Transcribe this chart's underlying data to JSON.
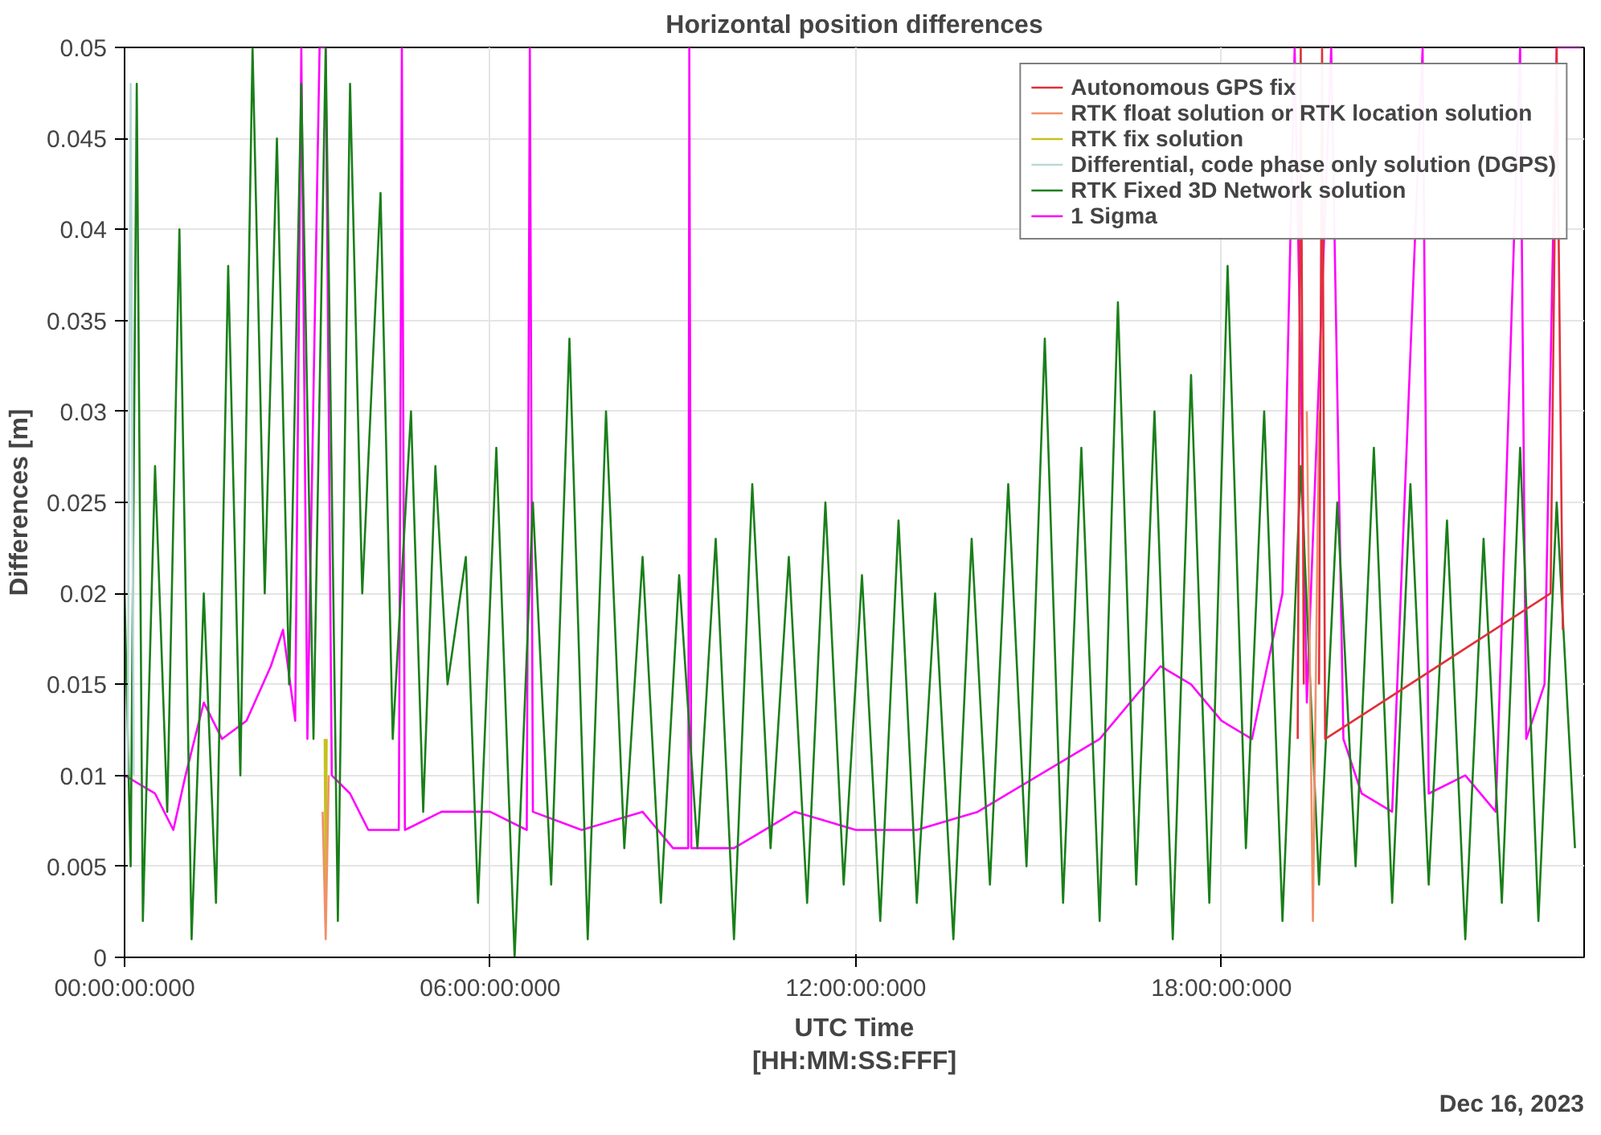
{
  "chart_data": {
    "type": "line",
    "title": "Horizontal position differences",
    "xlabel": "UTC Time\n[HH:MM:SS:FFF]",
    "ylabel": "Differences [m]",
    "annotations": [
      "Dec 16, 2023"
    ],
    "xlim": [
      "2023-12-16T00:00",
      "2023-12-16T23:57"
    ],
    "xticks": [
      {
        "value": "2023-12-16T00:00",
        "label": "00:00:00:000"
      },
      {
        "value": "2023-12-16T06:00",
        "label": "06:00:00:000"
      },
      {
        "value": "2023-12-16T12:00",
        "label": "12:00:00:000"
      },
      {
        "value": "2023-12-16T18:00",
        "label": "18:00:00:000"
      }
    ],
    "ylim": [
      0,
      0.05
    ],
    "yticks": [
      0,
      0.005,
      0.01,
      0.015,
      0.02,
      0.025,
      0.03,
      0.035,
      0.04,
      0.045,
      0.05
    ],
    "grid": true,
    "legend": "top right",
    "line_style": "solid",
    "series": [
      {
        "name": "Autonomous GPS fix",
        "color": "#e0303a",
        "x": [
          "2023-12-16T19:15",
          "2023-12-16T19:18",
          "2023-12-16T19:21",
          "2023-12-16T19:24",
          "2023-12-16T19:36",
          "2023-12-16T19:39",
          "2023-12-16T19:42",
          "2023-12-16T23:24",
          "2023-12-16T23:30",
          "2023-12-16T23:36"
        ],
        "values": [
          0.012,
          0.05,
          0.015,
          null,
          0.015,
          0.05,
          0.012,
          0.02,
          0.05,
          0.018
        ]
      },
      {
        "name": "RTK float solution or RTK location solution",
        "color": "#f0906a",
        "x": [
          "2023-12-16T03:15",
          "2023-12-16T03:18",
          "2023-12-16T03:21",
          "2023-12-16T03:24",
          "2023-12-16T19:24",
          "2023-12-16T19:30",
          "2023-12-16T19:36"
        ],
        "values": [
          0.008,
          0.001,
          0.01,
          null,
          0.03,
          0.002,
          0.03
        ]
      },
      {
        "name": "RTK fix solution",
        "color": "#c8c020",
        "x": [
          "2023-12-16T03:17",
          "2023-12-16T03:18",
          "2023-12-16T03:19"
        ],
        "values": [
          0.012,
          0.002,
          0.012
        ]
      },
      {
        "name": "Differential, code phase only solution (DGPS)",
        "color": "#b8d8d8",
        "x": [
          "2023-12-16T00:03",
          "2023-12-16T00:06",
          "2023-12-16T00:09"
        ],
        "values": [
          0.01,
          0.048,
          0.01
        ]
      },
      {
        "name": "RTK Fixed 3D Network solution",
        "color": "#1a7f1a",
        "x": [
          "2023-12-16T00:00",
          "2023-12-16T00:06",
          "2023-12-16T00:12",
          "2023-12-16T00:18",
          "2023-12-16T00:30",
          "2023-12-16T00:42",
          "2023-12-16T00:54",
          "2023-12-16T01:06",
          "2023-12-16T01:18",
          "2023-12-16T01:30",
          "2023-12-16T01:42",
          "2023-12-16T01:54",
          "2023-12-16T02:06",
          "2023-12-16T02:18",
          "2023-12-16T02:30",
          "2023-12-16T02:42",
          "2023-12-16T02:54",
          "2023-12-16T03:06",
          "2023-12-16T03:18",
          "2023-12-16T03:30",
          "2023-12-16T03:42",
          "2023-12-16T03:54",
          "2023-12-16T04:12",
          "2023-12-16T04:24",
          "2023-12-16T04:42",
          "2023-12-16T04:54",
          "2023-12-16T05:06",
          "2023-12-16T05:18",
          "2023-12-16T05:36",
          "2023-12-16T05:48",
          "2023-12-16T06:06",
          "2023-12-16T06:24",
          "2023-12-16T06:42",
          "2023-12-16T07:00",
          "2023-12-16T07:18",
          "2023-12-16T07:36",
          "2023-12-16T07:54",
          "2023-12-16T08:12",
          "2023-12-16T08:30",
          "2023-12-16T08:48",
          "2023-12-16T09:06",
          "2023-12-16T09:24",
          "2023-12-16T09:42",
          "2023-12-16T10:00",
          "2023-12-16T10:18",
          "2023-12-16T10:36",
          "2023-12-16T10:54",
          "2023-12-16T11:12",
          "2023-12-16T11:30",
          "2023-12-16T11:48",
          "2023-12-16T12:06",
          "2023-12-16T12:24",
          "2023-12-16T12:42",
          "2023-12-16T13:00",
          "2023-12-16T13:18",
          "2023-12-16T13:36",
          "2023-12-16T13:54",
          "2023-12-16T14:12",
          "2023-12-16T14:30",
          "2023-12-16T14:48",
          "2023-12-16T15:06",
          "2023-12-16T15:24",
          "2023-12-16T15:42",
          "2023-12-16T16:00",
          "2023-12-16T16:18",
          "2023-12-16T16:36",
          "2023-12-16T16:54",
          "2023-12-16T17:12",
          "2023-12-16T17:30",
          "2023-12-16T17:48",
          "2023-12-16T18:06",
          "2023-12-16T18:24",
          "2023-12-16T18:42",
          "2023-12-16T19:00",
          "2023-12-16T19:18",
          "2023-12-16T19:36",
          "2023-12-16T19:54",
          "2023-12-16T20:12",
          "2023-12-16T20:30",
          "2023-12-16T20:48",
          "2023-12-16T21:06",
          "2023-12-16T21:24",
          "2023-12-16T21:42",
          "2023-12-16T22:00",
          "2023-12-16T22:18",
          "2023-12-16T22:36",
          "2023-12-16T22:54",
          "2023-12-16T23:12",
          "2023-12-16T23:30",
          "2023-12-16T23:48"
        ],
        "values": [
          0.02,
          0.005,
          0.048,
          0.002,
          0.027,
          0.008,
          0.04,
          0.001,
          0.02,
          0.003,
          0.038,
          0.01,
          0.05,
          0.02,
          0.045,
          0.015,
          0.048,
          0.012,
          0.05,
          0.002,
          0.048,
          0.02,
          0.042,
          0.012,
          0.03,
          0.008,
          0.027,
          0.015,
          0.022,
          0.003,
          0.028,
          0.0,
          0.025,
          0.004,
          0.034,
          0.001,
          0.03,
          0.006,
          0.022,
          0.003,
          0.021,
          0.006,
          0.023,
          0.001,
          0.026,
          0.006,
          0.022,
          0.003,
          0.025,
          0.004,
          0.021,
          0.002,
          0.024,
          0.003,
          0.02,
          0.001,
          0.023,
          0.004,
          0.026,
          0.005,
          0.034,
          0.003,
          0.028,
          0.002,
          0.036,
          0.004,
          0.03,
          0.001,
          0.032,
          0.003,
          0.038,
          0.006,
          0.03,
          0.002,
          0.027,
          0.004,
          0.025,
          0.005,
          0.028,
          0.003,
          0.026,
          0.004,
          0.024,
          0.001,
          0.023,
          0.003,
          0.028,
          0.002,
          0.025,
          0.006
        ]
      },
      {
        "name": "1 Sigma",
        "color": "#ff00ff",
        "x": [
          "2023-12-16T00:00",
          "2023-12-16T00:30",
          "2023-12-16T00:48",
          "2023-12-16T01:00",
          "2023-12-16T01:18",
          "2023-12-16T01:36",
          "2023-12-16T02:00",
          "2023-12-16T02:24",
          "2023-12-16T02:36",
          "2023-12-16T02:48",
          "2023-12-16T02:54",
          "2023-12-16T03:00",
          "2023-12-16T03:12",
          "2023-12-16T03:18",
          "2023-12-16T03:24",
          "2023-12-16T03:42",
          "2023-12-16T04:00",
          "2023-12-16T04:30",
          "2023-12-16T04:33",
          "2023-12-16T04:36",
          "2023-12-16T05:12",
          "2023-12-16T06:00",
          "2023-12-16T06:36",
          "2023-12-16T06:39",
          "2023-12-16T06:42",
          "2023-12-16T07:30",
          "2023-12-16T08:30",
          "2023-12-16T09:00",
          "2023-12-16T09:15",
          "2023-12-16T09:16",
          "2023-12-16T09:18",
          "2023-12-16T10:00",
          "2023-12-16T10:30",
          "2023-12-16T11:00",
          "2023-12-16T12:00",
          "2023-12-16T13:00",
          "2023-12-16T14:00",
          "2023-12-16T15:00",
          "2023-12-16T16:00",
          "2023-12-16T17:00",
          "2023-12-16T17:30",
          "2023-12-16T18:00",
          "2023-12-16T18:30",
          "2023-12-16T19:00",
          "2023-12-16T19:12",
          "2023-12-16T19:24",
          "2023-12-16T19:48",
          "2023-12-16T20:00",
          "2023-12-16T20:18",
          "2023-12-16T20:48",
          "2023-12-16T21:18",
          "2023-12-16T21:24",
          "2023-12-16T22:00",
          "2023-12-16T22:30",
          "2023-12-16T22:54",
          "2023-12-16T23:00",
          "2023-12-16T23:18",
          "2023-12-16T23:30",
          "2023-12-16T23:54"
        ],
        "values": [
          0.01,
          0.009,
          0.007,
          0.01,
          0.014,
          0.012,
          0.013,
          0.016,
          0.018,
          0.013,
          0.05,
          0.012,
          0.05,
          0.05,
          0.01,
          0.009,
          0.007,
          0.007,
          0.05,
          0.007,
          0.008,
          0.008,
          0.007,
          0.05,
          0.008,
          0.007,
          0.008,
          0.006,
          0.006,
          0.05,
          0.006,
          0.006,
          0.007,
          0.008,
          0.007,
          0.007,
          0.008,
          0.01,
          0.012,
          0.016,
          0.015,
          0.013,
          0.012,
          0.02,
          0.05,
          0.014,
          0.05,
          0.012,
          0.009,
          0.008,
          0.05,
          0.009,
          0.01,
          0.008,
          0.05,
          0.012,
          0.015,
          0.05,
          0.05
        ]
      }
    ]
  }
}
